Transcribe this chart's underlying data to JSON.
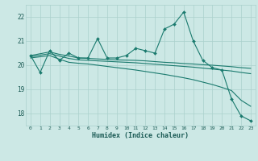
{
  "xlabel": "Humidex (Indice chaleur)",
  "xlim": [
    -0.5,
    23.5
  ],
  "ylim": [
    17.5,
    22.5
  ],
  "yticks": [
    18,
    19,
    20,
    21,
    22
  ],
  "xticks": [
    0,
    1,
    2,
    3,
    4,
    5,
    6,
    7,
    8,
    9,
    10,
    11,
    12,
    13,
    14,
    15,
    16,
    17,
    18,
    19,
    20,
    21,
    22,
    23
  ],
  "background_color": "#cce8e5",
  "grid_color": "#aad0cc",
  "line_color": "#1a7a6e",
  "lines": [
    {
      "x": [
        0,
        1,
        2,
        3,
        4,
        5,
        6,
        7,
        8,
        9,
        10,
        11,
        12,
        13,
        14,
        15,
        16,
        17,
        18,
        19,
        20,
        21,
        22,
        23
      ],
      "y": [
        20.4,
        19.7,
        20.6,
        20.2,
        20.5,
        20.3,
        20.3,
        21.1,
        20.3,
        20.3,
        20.4,
        20.7,
        20.6,
        20.5,
        21.5,
        21.7,
        22.2,
        21.0,
        20.2,
        19.9,
        19.8,
        18.6,
        17.9,
        17.7
      ],
      "marker": "D",
      "markersize": 2.0,
      "linewidth": 0.8,
      "has_marker": true
    },
    {
      "x": [
        0,
        2,
        3,
        4,
        5,
        6,
        7,
        8,
        9,
        10,
        11,
        12,
        13,
        14,
        15,
        16,
        17,
        18,
        19,
        20,
        21,
        22,
        23
      ],
      "y": [
        20.4,
        20.55,
        20.45,
        20.38,
        20.3,
        20.28,
        20.26,
        20.24,
        20.22,
        20.21,
        20.2,
        20.18,
        20.15,
        20.12,
        20.1,
        20.07,
        20.05,
        20.02,
        20.0,
        19.97,
        19.94,
        19.9,
        19.87
      ],
      "marker": null,
      "markersize": 0,
      "linewidth": 0.8,
      "has_marker": false
    },
    {
      "x": [
        0,
        2,
        3,
        4,
        5,
        6,
        7,
        8,
        9,
        10,
        11,
        12,
        13,
        14,
        15,
        16,
        17,
        18,
        19,
        20,
        21,
        22,
        23
      ],
      "y": [
        20.35,
        20.48,
        20.38,
        20.28,
        20.22,
        20.2,
        20.18,
        20.16,
        20.14,
        20.12,
        20.1,
        20.07,
        20.04,
        20.01,
        19.98,
        19.95,
        19.92,
        19.88,
        19.84,
        19.8,
        19.76,
        19.7,
        19.65
      ],
      "marker": null,
      "markersize": 0,
      "linewidth": 0.8,
      "has_marker": false
    },
    {
      "x": [
        0,
        2,
        3,
        4,
        5,
        6,
        7,
        8,
        9,
        10,
        11,
        12,
        13,
        14,
        15,
        16,
        17,
        18,
        19,
        20,
        21,
        22,
        23
      ],
      "y": [
        20.3,
        20.4,
        20.25,
        20.12,
        20.08,
        20.05,
        20.0,
        19.95,
        19.9,
        19.85,
        19.8,
        19.74,
        19.68,
        19.62,
        19.55,
        19.48,
        19.4,
        19.3,
        19.2,
        19.08,
        18.95,
        18.55,
        18.3
      ],
      "marker": null,
      "markersize": 0,
      "linewidth": 0.8,
      "has_marker": false
    }
  ]
}
